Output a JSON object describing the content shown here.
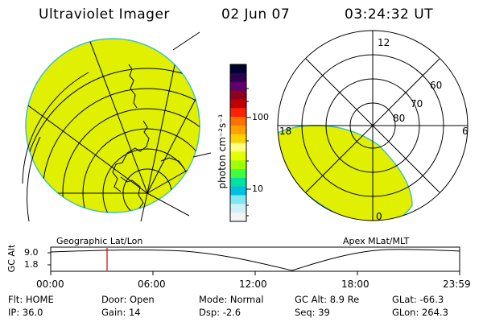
{
  "header": {
    "title": "Ultraviolet Imager",
    "date": "02 Jun 07",
    "time": "03:24:32 UT"
  },
  "colorbar": {
    "unit_label": "photon cm⁻²s⁻¹",
    "ticks": [
      "100",
      "10"
    ],
    "colors": [
      "#000030",
      "#300050",
      "#600070",
      "#900020",
      "#c00000",
      "#ff2000",
      "#ff7000",
      "#ffa000",
      "#ffd000",
      "#ffff80",
      "#e6ff00",
      "#a0ff00",
      "#40ff40",
      "#00e0a0",
      "#00c0e0",
      "#80e8f0",
      "#d0f0f8",
      "#f4f4f4"
    ]
  },
  "left_panel": {
    "label": "Geographic Lat/Lon",
    "fill_color": "#e0f000"
  },
  "right_panel": {
    "label": "Apex MLat/MLT",
    "fill_color": "#e0f000",
    "mlt_labels": [
      "12",
      "18",
      "6",
      "0"
    ],
    "mlat_labels": [
      "60",
      "70",
      "80"
    ]
  },
  "timeline": {
    "ylabel": "GC Alt",
    "yticks": [
      "9.0",
      "1.8"
    ],
    "xticks": [
      "00:00",
      "06:00",
      "12:00",
      "18:00",
      "23:59"
    ],
    "marker_color": "#cc0000"
  },
  "info": [
    {
      "label": "Flt:",
      "value": "HOME"
    },
    {
      "label": "Door:",
      "value": "Open"
    },
    {
      "label": "Mode:",
      "value": "Normal"
    },
    {
      "label": "GC Alt:",
      "value": "8.9 Re"
    },
    {
      "label": "GLat:",
      "value": "-66.3"
    },
    {
      "label": "IP:",
      "value": "36.0"
    },
    {
      "label": "Gain:",
      "value": "14"
    },
    {
      "label": "Dsp:",
      "value": "-2.6"
    },
    {
      "label": "Seq:",
      "value": "39"
    },
    {
      "label": "GLon:",
      "value": "264.3"
    }
  ]
}
